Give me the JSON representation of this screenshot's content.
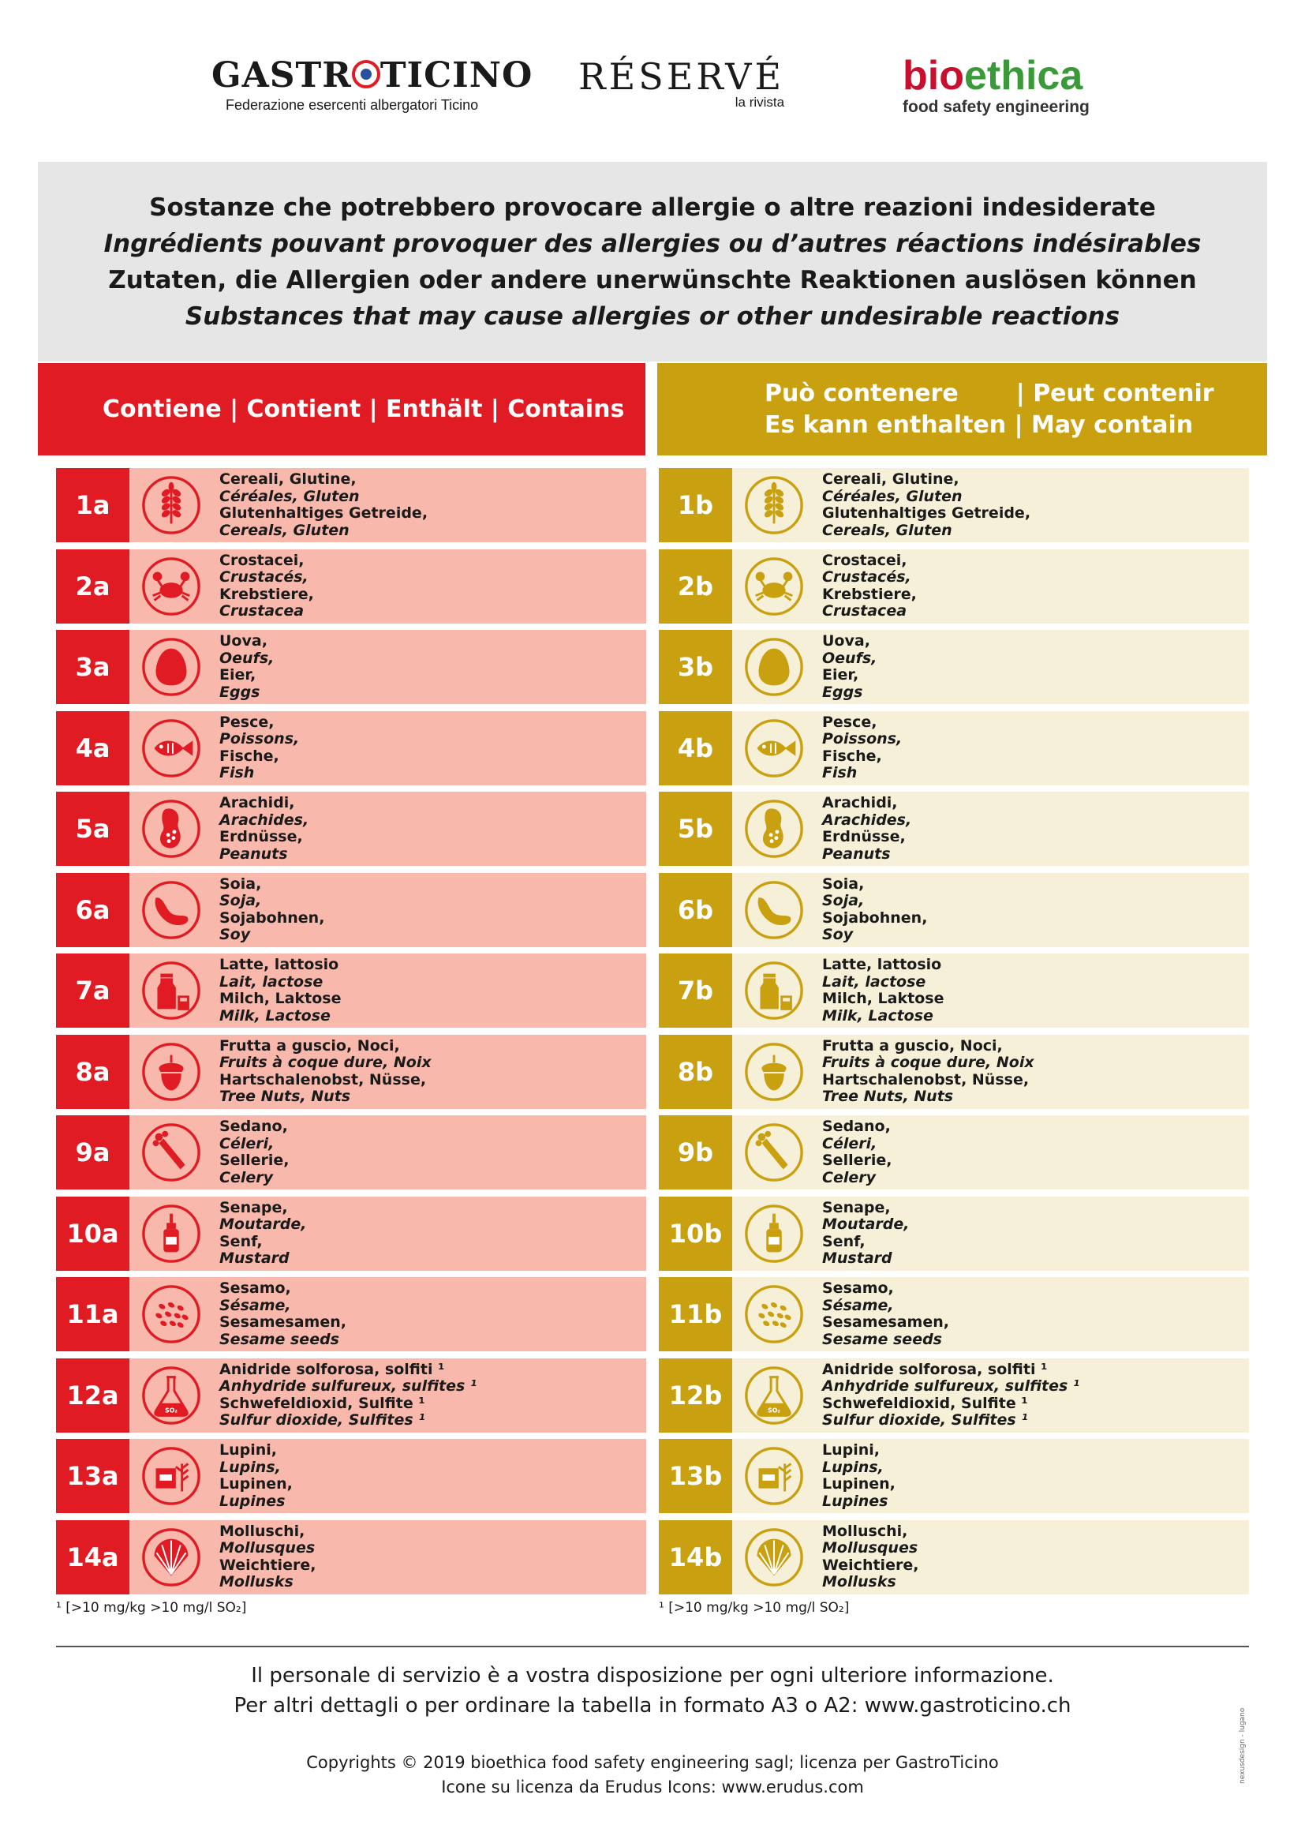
{
  "logos": {
    "gastroticino": {
      "name_before": "GASTR",
      "name_after": "TICINO",
      "sub": "Federazione esercenti albergatori Ticino"
    },
    "reserve": {
      "name": "RÉSERVÉ",
      "sub": "la rivista"
    },
    "bioethica": {
      "name_a": "bio",
      "name_b": "ethica",
      "sub": "food safety engineering"
    }
  },
  "title": {
    "it": "Sostanze che potrebbero provocare allergie o altre reazioni indesiderate",
    "fr": "Ingrédients pouvant provoquer des allergies ou d’autres réactions indésirables",
    "de": "Zutaten, die Allergien oder andere unerwünschte Reaktionen auslösen können",
    "en": "Substances that may cause allergies or other undesirable reactions"
  },
  "headers": {
    "contains": "Contiene | Contient | Enthält | Contains",
    "may_contain_line1": "Può contenere       | Peut contenir",
    "may_contain_line2": "Es kann enthalten | May contain"
  },
  "colors": {
    "red": "#e11b23",
    "gold": "#c9a010",
    "pink": "#f8b9ac",
    "cream": "#f7f0d8"
  },
  "allergens": [
    {
      "a": "1a",
      "b": "1b",
      "icon": "wheat-icon",
      "lines": [
        "Cereali, Glutine,",
        "Céréales, Gluten",
        "Glutenhaltiges Getreide,",
        "Cereals, Gluten"
      ]
    },
    {
      "a": "2a",
      "b": "2b",
      "icon": "crab-icon",
      "lines": [
        "Crostacei,",
        "Crustacés,",
        "Krebstiere,",
        "Crustacea"
      ]
    },
    {
      "a": "3a",
      "b": "3b",
      "icon": "egg-icon",
      "lines": [
        "Uova,",
        "Oeufs,",
        "Eier,",
        "Eggs"
      ]
    },
    {
      "a": "4a",
      "b": "4b",
      "icon": "fish-icon",
      "lines": [
        "Pesce,",
        "Poissons,",
        "Fische,",
        "Fish"
      ]
    },
    {
      "a": "5a",
      "b": "5b",
      "icon": "peanut-icon",
      "lines": [
        "Arachidi,",
        "Arachides,",
        "Erdnüsse,",
        "Peanuts"
      ]
    },
    {
      "a": "6a",
      "b": "6b",
      "icon": "soy-bean-icon",
      "lines": [
        "Soia,",
        "Soja,",
        "Sojabohnen,",
        "Soy"
      ]
    },
    {
      "a": "7a",
      "b": "7b",
      "icon": "milk-icon",
      "lines": [
        "Latte, lattosio",
        "Lait, lactose",
        "Milch, Laktose",
        "Milk, Lactose"
      ]
    },
    {
      "a": "8a",
      "b": "8b",
      "icon": "nut-icon",
      "lines": [
        "Frutta a guscio, Noci,",
        "Fruits à coque dure, Noix",
        "Hartschalenobst, Nüsse,",
        "Tree Nuts, Nuts"
      ]
    },
    {
      "a": "9a",
      "b": "9b",
      "icon": "celery-icon",
      "lines": [
        "Sedano,",
        "Céleri,",
        "Sellerie,",
        "Celery"
      ]
    },
    {
      "a": "10a",
      "b": "10b",
      "icon": "mustard-icon",
      "lines": [
        "Senape,",
        "Moutarde,",
        "Senf,",
        "Mustard"
      ]
    },
    {
      "a": "11a",
      "b": "11b",
      "icon": "sesame-icon",
      "lines": [
        "Sesamo,",
        "Sésame,",
        "Sesamesamen,",
        "Sesame seeds"
      ]
    },
    {
      "a": "12a",
      "b": "12b",
      "icon": "flask-icon",
      "icon_label": "SO₂",
      "lines": [
        "Anidride solforosa, solfiti ¹",
        "Anhydride sulfureux, sulfites ¹",
        "Schwefeldioxid, Sulfite ¹",
        "Sulfur dioxide, Sulfites ¹"
      ]
    },
    {
      "a": "13a",
      "b": "13b",
      "icon": "lupin-icon",
      "lines": [
        "Lupini,",
        "Lupins,",
        "Lupinen,",
        "Lupines"
      ]
    },
    {
      "a": "14a",
      "b": "14b",
      "icon": "shell-icon",
      "lines": [
        "Molluschi,",
        "Mollusques",
        "Weichtiere,",
        "Mollusks"
      ]
    }
  ],
  "footnote": "¹ [>10 mg/kg >10 mg/l SO₂]",
  "footer": {
    "line1": "Il personale di servizio è a vostra disposizione per ogni ulteriore informazione.",
    "line2": "Per altri dettagli o per ordinare la tabella in formato A3 o A2: www.gastroticino.ch",
    "copyright": "Copyrights © 2019 bioethica food safety engineering sagl; licenza per GastroTicino",
    "icons": "Icone su licenza da Erudus Icons: www.erudus.com",
    "side": "nexusdesign - lugano"
  }
}
